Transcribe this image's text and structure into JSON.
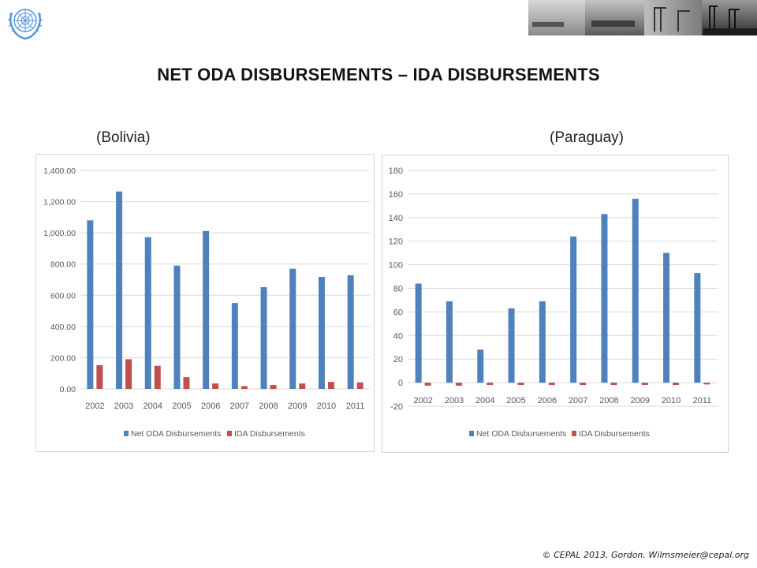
{
  "slide": {
    "title": "NET ODA DISBURSEMENTS – IDA DISBURSEMENTS",
    "copyright": "© CEPAL 2013, Gordon. Wilmsmeier@cepal.org"
  },
  "colors": {
    "net_oda": "#4f81bd",
    "ida": "#c0504d",
    "grid": "#d9d9d9",
    "axis_text": "#595959"
  },
  "icons": {
    "logo": "un-emblem-icon",
    "header": "port-cranes-photo-strip"
  },
  "chart_data": [
    {
      "type": "bar",
      "subtitle": "(Bolivia)",
      "categories": [
        "2002",
        "2003",
        "2004",
        "2005",
        "2006",
        "2007",
        "2008",
        "2009",
        "2010",
        "2011"
      ],
      "series": [
        {
          "name": "Net ODA Disbursements",
          "values": [
            1080,
            1265,
            972,
            790,
            1012,
            550,
            652,
            770,
            718,
            728
          ]
        },
        {
          "name": "IDA Disbursements",
          "values": [
            152,
            190,
            148,
            75,
            35,
            18,
            25,
            35,
            45,
            42
          ]
        }
      ],
      "yticks": [
        "0.00",
        "200.00",
        "400.00",
        "600.00",
        "800.00",
        "1,000.00",
        "1,200.00",
        "1,400.00"
      ],
      "ylim": [
        0,
        1400
      ],
      "ystep": 200,
      "grid": true,
      "legend": "bottom"
    },
    {
      "type": "bar",
      "subtitle": "(Paraguay)",
      "categories": [
        "2002",
        "2003",
        "2004",
        "2005",
        "2006",
        "2007",
        "2008",
        "2009",
        "2010",
        "2011"
      ],
      "series": [
        {
          "name": "Net ODA Disbursements",
          "values": [
            84,
            69,
            28,
            63,
            69,
            124,
            143,
            156,
            110,
            93
          ]
        },
        {
          "name": "IDA Disbursements",
          "values": [
            -2.5,
            -2.5,
            -2,
            -2,
            -2,
            -2,
            -2,
            -2,
            -2,
            -1.5
          ]
        }
      ],
      "yticks": [
        "-20",
        "0",
        "20",
        "40",
        "60",
        "80",
        "100",
        "120",
        "140",
        "160",
        "180"
      ],
      "ylim": [
        -20,
        180
      ],
      "ystep": 20,
      "grid": true,
      "legend": "bottom"
    }
  ]
}
